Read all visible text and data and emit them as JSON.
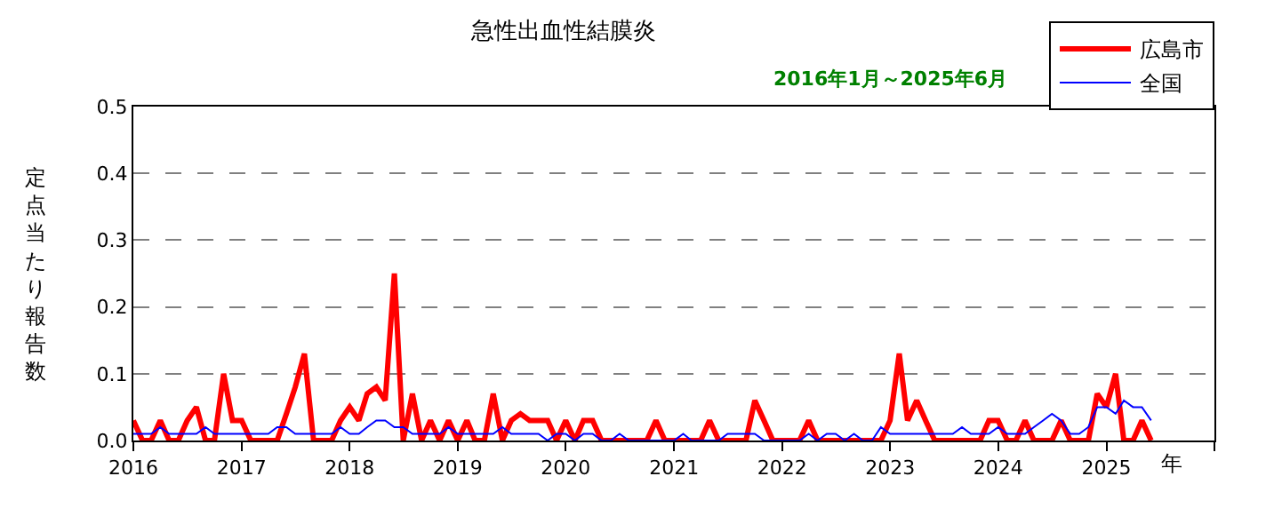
{
  "chart_data": {
    "type": "line",
    "title": "急性出血性結膜炎",
    "subtitle": "2016年1月～2025年6月",
    "xlabel": "年",
    "ylabel": "定点当たり報告数",
    "x": [
      "2016-01",
      "2016-02",
      "2016-03",
      "2016-04",
      "2016-05",
      "2016-06",
      "2016-07",
      "2016-08",
      "2016-09",
      "2016-10",
      "2016-11",
      "2016-12",
      "2017-01",
      "2017-02",
      "2017-03",
      "2017-04",
      "2017-05",
      "2017-06",
      "2017-07",
      "2017-08",
      "2017-09",
      "2017-10",
      "2017-11",
      "2017-12",
      "2018-01",
      "2018-02",
      "2018-03",
      "2018-04",
      "2018-05",
      "2018-06",
      "2018-07",
      "2018-08",
      "2018-09",
      "2018-10",
      "2018-11",
      "2018-12",
      "2019-01",
      "2019-02",
      "2019-03",
      "2019-04",
      "2019-05",
      "2019-06",
      "2019-07",
      "2019-08",
      "2019-09",
      "2019-10",
      "2019-11",
      "2019-12",
      "2020-01",
      "2020-02",
      "2020-03",
      "2020-04",
      "2020-05",
      "2020-06",
      "2020-07",
      "2020-08",
      "2020-09",
      "2020-10",
      "2020-11",
      "2020-12",
      "2021-01",
      "2021-02",
      "2021-03",
      "2021-04",
      "2021-05",
      "2021-06",
      "2021-07",
      "2021-08",
      "2021-09",
      "2021-10",
      "2021-11",
      "2021-12",
      "2022-01",
      "2022-02",
      "2022-03",
      "2022-04",
      "2022-05",
      "2022-06",
      "2022-07",
      "2022-08",
      "2022-09",
      "2022-10",
      "2022-11",
      "2022-12",
      "2023-01",
      "2023-02",
      "2023-03",
      "2023-04",
      "2023-05",
      "2023-06",
      "2023-07",
      "2023-08",
      "2023-09",
      "2023-10",
      "2023-11",
      "2023-12",
      "2024-01",
      "2024-02",
      "2024-03",
      "2024-04",
      "2024-05",
      "2024-06",
      "2024-07",
      "2024-08",
      "2024-09",
      "2024-10",
      "2024-11",
      "2024-12",
      "2025-01",
      "2025-02",
      "2025-03",
      "2025-04",
      "2025-05",
      "2025-06"
    ],
    "series": [
      {
        "name": "広島市",
        "color": "#ff0000",
        "values": [
          0.03,
          0,
          0,
          0.03,
          0,
          0,
          0.03,
          0.05,
          0,
          0,
          0.1,
          0.03,
          0.03,
          0,
          0,
          0,
          0,
          0.04,
          0.08,
          0.13,
          0,
          0,
          0,
          0.03,
          0.05,
          0.03,
          0.07,
          0.08,
          0.06,
          0.25,
          0,
          0.07,
          0,
          0.03,
          0,
          0.03,
          0,
          0.03,
          0,
          0,
          0.07,
          0,
          0.03,
          0.04,
          0.03,
          0.03,
          0.03,
          0,
          0.03,
          0,
          0.03,
          0.03,
          0,
          0,
          0,
          0,
          0,
          0,
          0.03,
          0,
          0,
          0,
          0,
          0,
          0.03,
          0,
          0,
          0,
          0,
          0.06,
          0.03,
          0,
          0,
          0,
          0,
          0.03,
          0,
          0,
          0,
          0,
          0,
          0,
          0,
          0,
          0.03,
          0.13,
          0.03,
          0.06,
          0.03,
          0,
          0,
          0,
          0,
          0,
          0,
          0.03,
          0.03,
          0,
          0,
          0.03,
          0,
          0,
          0,
          0.03,
          0,
          0,
          0,
          0.07,
          0.05,
          0.1,
          0,
          0,
          0.03,
          0
        ]
      },
      {
        "name": "全国",
        "color": "#0000ff",
        "values": [
          0.01,
          0.01,
          0.01,
          0.02,
          0.01,
          0.01,
          0.01,
          0.01,
          0.02,
          0.01,
          0.01,
          0.01,
          0.01,
          0.01,
          0.01,
          0.01,
          0.02,
          0.02,
          0.01,
          0.01,
          0.01,
          0.01,
          0.01,
          0.02,
          0.01,
          0.01,
          0.02,
          0.03,
          0.03,
          0.02,
          0.02,
          0.01,
          0.01,
          0.01,
          0.01,
          0.02,
          0.01,
          0.01,
          0.01,
          0.01,
          0.01,
          0.02,
          0.01,
          0.01,
          0.01,
          0.01,
          0,
          0.01,
          0.01,
          0,
          0.01,
          0.01,
          0,
          0,
          0.01,
          0,
          0,
          0,
          0,
          0,
          0,
          0.01,
          0,
          0,
          0,
          0,
          0.01,
          0.01,
          0.01,
          0.01,
          0,
          0,
          0,
          0,
          0,
          0.01,
          0,
          0.01,
          0.01,
          0,
          0.01,
          0,
          0,
          0.02,
          0.01,
          0.01,
          0.01,
          0.01,
          0.01,
          0.01,
          0.01,
          0.01,
          0.02,
          0.01,
          0.01,
          0.01,
          0.02,
          0.01,
          0.01,
          0.01,
          0.02,
          0.03,
          0.04,
          0.03,
          0.01,
          0.01,
          0.02,
          0.05,
          0.05,
          0.04,
          0.06,
          0.05,
          0.05,
          0.03
        ]
      }
    ],
    "xlim": [
      "2016-01",
      "2026-01"
    ],
    "xticks": [
      {
        "value": "2016-01",
        "label": "2016"
      },
      {
        "value": "2017-01",
        "label": "2017"
      },
      {
        "value": "2018-01",
        "label": "2018"
      },
      {
        "value": "2019-01",
        "label": "2019"
      },
      {
        "value": "2020-01",
        "label": "2020"
      },
      {
        "value": "2021-01",
        "label": "2021"
      },
      {
        "value": "2022-01",
        "label": "2022"
      },
      {
        "value": "2023-01",
        "label": "2023"
      },
      {
        "value": "2024-01",
        "label": "2024"
      },
      {
        "value": "2025-01",
        "label": "2025"
      },
      {
        "value": "2026-01",
        "label": null
      }
    ],
    "ylim": [
      0,
      0.5
    ],
    "yticks": [
      {
        "value": 0,
        "label": "0.0"
      },
      {
        "value": 0.1,
        "label": "0.1"
      },
      {
        "value": 0.2,
        "label": "0.2"
      },
      {
        "value": 0.3,
        "label": "0.3"
      },
      {
        "value": 0.4,
        "label": "0.4"
      },
      {
        "value": 0.5,
        "label": "0.5"
      }
    ],
    "grid": "y",
    "legend": "top right",
    "marker": "none",
    "line_style": "solid"
  }
}
